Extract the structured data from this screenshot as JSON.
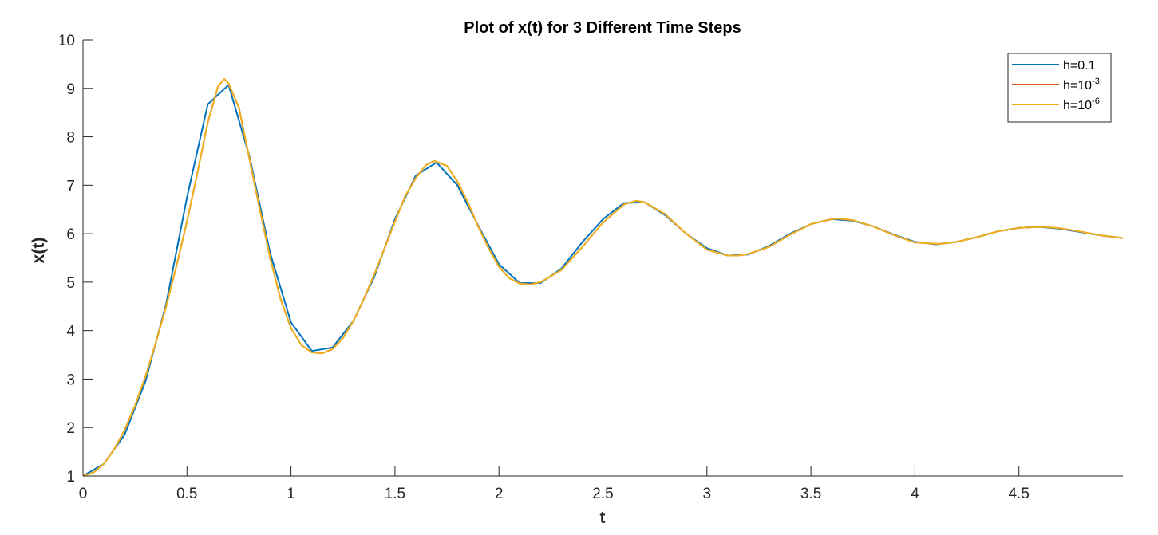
{
  "chart_data": {
    "type": "line",
    "title": "Plot of x(t) for 3 Different Time Steps",
    "xlabel": "t",
    "ylabel": "x(t)",
    "xlim": [
      0,
      5
    ],
    "ylim": [
      1,
      10
    ],
    "x_ticks": [
      "0",
      "0.5",
      "1",
      "1.5",
      "2",
      "2.5",
      "3",
      "3.5",
      "4",
      "4.5"
    ],
    "x_tick_values": [
      0,
      0.5,
      1,
      1.5,
      2,
      2.5,
      3,
      3.5,
      4,
      4.5
    ],
    "y_ticks": [
      "1",
      "2",
      "3",
      "4",
      "5",
      "6",
      "7",
      "8",
      "9",
      "10"
    ],
    "y_tick_values": [
      1,
      2,
      3,
      4,
      5,
      6,
      7,
      8,
      9,
      10
    ],
    "grid": false,
    "legend_position": "top-right",
    "legend": [
      {
        "base": "h=10",
        "prefix": "h=0.1",
        "sup": "",
        "color": "#0072BD"
      },
      {
        "base": "h=10",
        "prefix": "h=10",
        "sup": "-3",
        "color": "#D95319"
      },
      {
        "base": "h=10",
        "prefix": "h=10",
        "sup": "-6",
        "color": "#EDB120"
      }
    ],
    "series": [
      {
        "color": "#0072BD",
        "x": [
          0,
          0.1,
          0.2,
          0.3,
          0.4,
          0.5,
          0.6,
          0.7,
          0.8,
          0.9,
          1.0,
          1.1,
          1.2,
          1.3,
          1.4,
          1.5,
          1.6,
          1.7,
          1.8,
          1.9,
          2.0,
          2.1,
          2.2,
          2.3,
          2.4,
          2.5,
          2.6,
          2.7,
          2.8,
          2.9,
          3.0,
          3.1,
          3.2,
          3.3,
          3.4,
          3.5,
          3.6,
          3.7,
          3.8,
          3.9,
          4.0,
          4.1,
          4.2,
          4.3,
          4.4,
          4.5,
          4.6,
          4.7,
          4.8,
          4.9,
          5.0
        ],
        "y": [
          1.0,
          1.25,
          1.85,
          2.95,
          4.55,
          6.75,
          8.67,
          9.07,
          7.6,
          5.6,
          4.17,
          3.58,
          3.65,
          4.2,
          5.1,
          6.3,
          7.2,
          7.47,
          7.0,
          6.17,
          5.37,
          4.98,
          4.98,
          5.28,
          5.82,
          6.3,
          6.63,
          6.65,
          6.38,
          6.0,
          5.7,
          5.55,
          5.57,
          5.75,
          6.0,
          6.2,
          6.3,
          6.27,
          6.15,
          5.98,
          5.83,
          5.78,
          5.83,
          5.93,
          6.05,
          6.12,
          6.14,
          6.1,
          6.03,
          5.96,
          5.91
        ]
      },
      {
        "color": "#D95319",
        "x": [
          0,
          0.05,
          0.1,
          0.15,
          0.2,
          0.25,
          0.3,
          0.35,
          0.4,
          0.45,
          0.5,
          0.55,
          0.6,
          0.65,
          0.68,
          0.7,
          0.75,
          0.8,
          0.85,
          0.9,
          0.95,
          1.0,
          1.05,
          1.1,
          1.15,
          1.2,
          1.25,
          1.3,
          1.35,
          1.4,
          1.45,
          1.5,
          1.55,
          1.6,
          1.65,
          1.69,
          1.75,
          1.8,
          1.85,
          1.9,
          1.95,
          2.0,
          2.05,
          2.1,
          2.15,
          2.2,
          2.3,
          2.4,
          2.5,
          2.6,
          2.66,
          2.7,
          2.8,
          2.9,
          3.0,
          3.1,
          3.15,
          3.2,
          3.3,
          3.4,
          3.5,
          3.6,
          3.63,
          3.7,
          3.8,
          3.9,
          4.0,
          4.1,
          4.12,
          4.2,
          4.3,
          4.4,
          4.5,
          4.6,
          4.62,
          4.7,
          4.8,
          4.9,
          5.0
        ],
        "y": [
          1.0,
          1.07,
          1.25,
          1.55,
          1.95,
          2.45,
          3.05,
          3.75,
          4.5,
          5.35,
          6.25,
          7.25,
          8.3,
          9.05,
          9.19,
          9.1,
          8.6,
          7.55,
          6.5,
          5.5,
          4.65,
          4.05,
          3.7,
          3.55,
          3.53,
          3.62,
          3.85,
          4.2,
          4.65,
          5.15,
          5.7,
          6.25,
          6.78,
          7.15,
          7.42,
          7.5,
          7.4,
          7.08,
          6.65,
          6.15,
          5.7,
          5.32,
          5.08,
          4.97,
          4.95,
          5.0,
          5.25,
          5.72,
          6.23,
          6.6,
          6.68,
          6.65,
          6.4,
          6.0,
          5.67,
          5.55,
          5.55,
          5.58,
          5.73,
          5.98,
          6.2,
          6.3,
          6.31,
          6.28,
          6.15,
          5.97,
          5.82,
          5.79,
          5.79,
          5.83,
          5.93,
          6.05,
          6.12,
          6.14,
          6.14,
          6.11,
          6.04,
          5.96,
          5.91
        ]
      },
      {
        "color": "#EDB120",
        "x": [
          0,
          0.05,
          0.1,
          0.15,
          0.2,
          0.25,
          0.3,
          0.35,
          0.4,
          0.45,
          0.5,
          0.55,
          0.6,
          0.65,
          0.68,
          0.7,
          0.75,
          0.8,
          0.85,
          0.9,
          0.95,
          1.0,
          1.05,
          1.1,
          1.15,
          1.2,
          1.25,
          1.3,
          1.35,
          1.4,
          1.45,
          1.5,
          1.55,
          1.6,
          1.65,
          1.69,
          1.75,
          1.8,
          1.85,
          1.9,
          1.95,
          2.0,
          2.05,
          2.1,
          2.15,
          2.2,
          2.3,
          2.4,
          2.5,
          2.6,
          2.66,
          2.7,
          2.8,
          2.9,
          3.0,
          3.1,
          3.15,
          3.2,
          3.3,
          3.4,
          3.5,
          3.6,
          3.63,
          3.7,
          3.8,
          3.9,
          4.0,
          4.1,
          4.12,
          4.2,
          4.3,
          4.4,
          4.5,
          4.6,
          4.62,
          4.7,
          4.8,
          4.9,
          5.0
        ],
        "y": [
          1.0,
          1.07,
          1.25,
          1.55,
          1.95,
          2.45,
          3.05,
          3.75,
          4.5,
          5.35,
          6.25,
          7.25,
          8.3,
          9.05,
          9.19,
          9.1,
          8.6,
          7.55,
          6.5,
          5.5,
          4.65,
          4.05,
          3.7,
          3.55,
          3.53,
          3.62,
          3.85,
          4.2,
          4.65,
          5.15,
          5.7,
          6.25,
          6.78,
          7.15,
          7.42,
          7.5,
          7.4,
          7.08,
          6.65,
          6.15,
          5.7,
          5.32,
          5.08,
          4.97,
          4.95,
          5.0,
          5.25,
          5.72,
          6.23,
          6.6,
          6.68,
          6.65,
          6.4,
          6.0,
          5.67,
          5.55,
          5.55,
          5.58,
          5.73,
          5.98,
          6.2,
          6.3,
          6.31,
          6.28,
          6.15,
          5.97,
          5.82,
          5.79,
          5.79,
          5.83,
          5.93,
          6.05,
          6.12,
          6.14,
          6.14,
          6.11,
          6.04,
          5.96,
          5.91
        ]
      }
    ]
  }
}
